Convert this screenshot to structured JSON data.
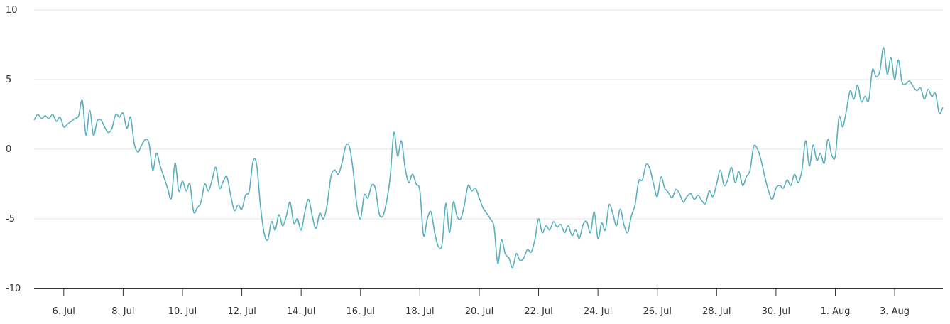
{
  "chart_data": {
    "type": "line",
    "title": "",
    "xlabel": "",
    "ylabel": "",
    "ylim": [
      -10,
      10
    ],
    "xlim": [
      "2024-07-05",
      "2024-08-04T15:00"
    ],
    "y_ticks": [
      {
        "value": 10,
        "label": "10"
      },
      {
        "value": 5,
        "label": "5"
      },
      {
        "value": 0,
        "label": "0"
      },
      {
        "value": -5,
        "label": "-5"
      },
      {
        "value": -10,
        "label": "-10"
      }
    ],
    "x_ticks": [
      {
        "date": "2024-07-06",
        "label": "6. Jul"
      },
      {
        "date": "2024-07-08",
        "label": "8. Jul"
      },
      {
        "date": "2024-07-10",
        "label": "10. Jul"
      },
      {
        "date": "2024-07-12",
        "label": "12. Jul"
      },
      {
        "date": "2024-07-14",
        "label": "14. Jul"
      },
      {
        "date": "2024-07-16",
        "label": "16. Jul"
      },
      {
        "date": "2024-07-18",
        "label": "18. Jul"
      },
      {
        "date": "2024-07-20",
        "label": "20. Jul"
      },
      {
        "date": "2024-07-22",
        "label": "22. Jul"
      },
      {
        "date": "2024-07-24",
        "label": "24. Jul"
      },
      {
        "date": "2024-07-26",
        "label": "26. Jul"
      },
      {
        "date": "2024-07-28",
        "label": "28. Jul"
      },
      {
        "date": "2024-07-30",
        "label": "30. Jul"
      },
      {
        "date": "2024-08-01",
        "label": "1. Aug"
      },
      {
        "date": "2024-08-03",
        "label": "3. Aug"
      }
    ],
    "grid": true,
    "legend": "none",
    "line_color": "#5ab0be",
    "series": [
      {
        "points": [
          [
            "2024-07-05T00:00",
            2.1
          ],
          [
            "2024-07-05T03:00",
            2.5
          ],
          [
            "2024-07-05T06:00",
            2.2
          ],
          [
            "2024-07-05T09:00",
            2.4
          ],
          [
            "2024-07-05T12:00",
            2.2
          ],
          [
            "2024-07-05T15:00",
            2.5
          ],
          [
            "2024-07-05T18:00",
            2.0
          ],
          [
            "2024-07-05T21:00",
            2.3
          ],
          [
            "2024-07-06T00:00",
            1.6
          ],
          [
            "2024-07-06T03:00",
            1.8
          ],
          [
            "2024-07-06T06:00",
            2.0
          ],
          [
            "2024-07-06T09:00",
            2.2
          ],
          [
            "2024-07-06T12:00",
            2.4
          ],
          [
            "2024-07-06T15:00",
            3.5
          ],
          [
            "2024-07-06T18:00",
            1.0
          ],
          [
            "2024-07-06T21:00",
            2.8
          ],
          [
            "2024-07-07T00:00",
            1.0
          ],
          [
            "2024-07-07T03:00",
            2.0
          ],
          [
            "2024-07-07T06:00",
            2.1
          ],
          [
            "2024-07-07T09:00",
            1.6
          ],
          [
            "2024-07-07T12:00",
            1.2
          ],
          [
            "2024-07-07T15:00",
            1.5
          ],
          [
            "2024-07-07T18:00",
            2.5
          ],
          [
            "2024-07-07T21:00",
            2.3
          ],
          [
            "2024-07-08T00:00",
            2.6
          ],
          [
            "2024-07-08T03:00",
            1.5
          ],
          [
            "2024-07-08T06:00",
            2.3
          ],
          [
            "2024-07-08T09:00",
            0.4
          ],
          [
            "2024-07-08T12:00",
            -0.2
          ],
          [
            "2024-07-08T15:00",
            0.3
          ],
          [
            "2024-07-08T18:00",
            0.7
          ],
          [
            "2024-07-08T21:00",
            0.4
          ],
          [
            "2024-07-09T00:00",
            -1.5
          ],
          [
            "2024-07-09T03:00",
            -0.3
          ],
          [
            "2024-07-09T06:00",
            -1.2
          ],
          [
            "2024-07-09T09:00",
            -2.0
          ],
          [
            "2024-07-09T12:00",
            -2.8
          ],
          [
            "2024-07-09T15:00",
            -3.5
          ],
          [
            "2024-07-09T18:00",
            -1.0
          ],
          [
            "2024-07-09T21:00",
            -3.0
          ],
          [
            "2024-07-10T00:00",
            -2.3
          ],
          [
            "2024-07-10T03:00",
            -3.0
          ],
          [
            "2024-07-10T06:00",
            -2.5
          ],
          [
            "2024-07-10T09:00",
            -4.5
          ],
          [
            "2024-07-10T12:00",
            -4.2
          ],
          [
            "2024-07-10T15:00",
            -3.8
          ],
          [
            "2024-07-10T18:00",
            -2.5
          ],
          [
            "2024-07-10T21:00",
            -3.0
          ],
          [
            "2024-07-11T00:00",
            -2.2
          ],
          [
            "2024-07-11T03:00",
            -1.3
          ],
          [
            "2024-07-11T06:00",
            -2.8
          ],
          [
            "2024-07-11T09:00",
            -2.3
          ],
          [
            "2024-07-11T12:00",
            -2.0
          ],
          [
            "2024-07-11T15:00",
            -3.3
          ],
          [
            "2024-07-11T18:00",
            -4.4
          ],
          [
            "2024-07-11T21:00",
            -4.0
          ],
          [
            "2024-07-12T00:00",
            -4.3
          ],
          [
            "2024-07-12T03:00",
            -3.3
          ],
          [
            "2024-07-12T06:00",
            -3.0
          ],
          [
            "2024-07-12T09:00",
            -0.9
          ],
          [
            "2024-07-12T12:00",
            -1.1
          ],
          [
            "2024-07-12T15:00",
            -4.0
          ],
          [
            "2024-07-12T18:00",
            -6.0
          ],
          [
            "2024-07-12T21:00",
            -6.5
          ],
          [
            "2024-07-13T00:00",
            -5.2
          ],
          [
            "2024-07-13T03:00",
            -5.8
          ],
          [
            "2024-07-13T06:00",
            -4.7
          ],
          [
            "2024-07-13T09:00",
            -5.5
          ],
          [
            "2024-07-13T12:00",
            -4.8
          ],
          [
            "2024-07-13T15:00",
            -3.8
          ],
          [
            "2024-07-13T18:00",
            -5.3
          ],
          [
            "2024-07-13T21:00",
            -5.0
          ],
          [
            "2024-07-14T00:00",
            -5.8
          ],
          [
            "2024-07-14T03:00",
            -4.5
          ],
          [
            "2024-07-14T06:00",
            -3.6
          ],
          [
            "2024-07-14T09:00",
            -4.8
          ],
          [
            "2024-07-14T12:00",
            -5.7
          ],
          [
            "2024-07-14T15:00",
            -4.6
          ],
          [
            "2024-07-14T18:00",
            -5.0
          ],
          [
            "2024-07-14T21:00",
            -4.0
          ],
          [
            "2024-07-15T00:00",
            -2.0
          ],
          [
            "2024-07-15T03:00",
            -1.5
          ],
          [
            "2024-07-15T06:00",
            -1.8
          ],
          [
            "2024-07-15T09:00",
            -1.0
          ],
          [
            "2024-07-15T12:00",
            0.2
          ],
          [
            "2024-07-15T15:00",
            0.2
          ],
          [
            "2024-07-15T18:00",
            -1.5
          ],
          [
            "2024-07-15T21:00",
            -4.0
          ],
          [
            "2024-07-16T00:00",
            -5.0
          ],
          [
            "2024-07-16T03:00",
            -3.3
          ],
          [
            "2024-07-16T06:00",
            -3.5
          ],
          [
            "2024-07-16T09:00",
            -2.6
          ],
          [
            "2024-07-16T12:00",
            -2.8
          ],
          [
            "2024-07-16T15:00",
            -4.6
          ],
          [
            "2024-07-16T18:00",
            -4.8
          ],
          [
            "2024-07-16T21:00",
            -3.8
          ],
          [
            "2024-07-17T00:00",
            -2.0
          ],
          [
            "2024-07-17T03:00",
            1.2
          ],
          [
            "2024-07-17T06:00",
            -0.5
          ],
          [
            "2024-07-17T09:00",
            0.6
          ],
          [
            "2024-07-17T12:00",
            -1.3
          ],
          [
            "2024-07-17T15:00",
            -2.4
          ],
          [
            "2024-07-17T18:00",
            -1.8
          ],
          [
            "2024-07-17T21:00",
            -2.5
          ],
          [
            "2024-07-18T00:00",
            -3.0
          ],
          [
            "2024-07-18T03:00",
            -6.2
          ],
          [
            "2024-07-18T06:00",
            -5.0
          ],
          [
            "2024-07-18T09:00",
            -4.5
          ],
          [
            "2024-07-18T12:00",
            -6.0
          ],
          [
            "2024-07-18T15:00",
            -7.0
          ],
          [
            "2024-07-18T18:00",
            -6.8
          ],
          [
            "2024-07-18T21:00",
            -3.9
          ],
          [
            "2024-07-19T00:00",
            -6.0
          ],
          [
            "2024-07-19T03:00",
            -3.8
          ],
          [
            "2024-07-19T06:00",
            -4.8
          ],
          [
            "2024-07-19T09:00",
            -5.0
          ],
          [
            "2024-07-19T12:00",
            -4.0
          ],
          [
            "2024-07-19T15:00",
            -2.6
          ],
          [
            "2024-07-19T18:00",
            -3.0
          ],
          [
            "2024-07-19T21:00",
            -2.8
          ],
          [
            "2024-07-20T00:00",
            -3.5
          ],
          [
            "2024-07-20T03:00",
            -4.2
          ],
          [
            "2024-07-20T06:00",
            -4.6
          ],
          [
            "2024-07-20T09:00",
            -5.0
          ],
          [
            "2024-07-20T12:00",
            -5.6
          ],
          [
            "2024-07-20T15:00",
            -8.2
          ],
          [
            "2024-07-20T18:00",
            -6.5
          ],
          [
            "2024-07-20T21:00",
            -7.5
          ],
          [
            "2024-07-21T00:00",
            -7.8
          ],
          [
            "2024-07-21T03:00",
            -8.5
          ],
          [
            "2024-07-21T06:00",
            -7.5
          ],
          [
            "2024-07-21T09:00",
            -8.0
          ],
          [
            "2024-07-21T12:00",
            -7.8
          ],
          [
            "2024-07-21T15:00",
            -7.2
          ],
          [
            "2024-07-21T18:00",
            -7.4
          ],
          [
            "2024-07-21T21:00",
            -6.5
          ],
          [
            "2024-07-22T00:00",
            -5.0
          ],
          [
            "2024-07-22T03:00",
            -6.0
          ],
          [
            "2024-07-22T06:00",
            -5.5
          ],
          [
            "2024-07-22T09:00",
            -5.8
          ],
          [
            "2024-07-22T12:00",
            -5.2
          ],
          [
            "2024-07-22T15:00",
            -5.6
          ],
          [
            "2024-07-22T18:00",
            -5.4
          ],
          [
            "2024-07-22T21:00",
            -6.0
          ],
          [
            "2024-07-23T00:00",
            -5.5
          ],
          [
            "2024-07-23T03:00",
            -6.2
          ],
          [
            "2024-07-23T06:00",
            -5.8
          ],
          [
            "2024-07-23T09:00",
            -6.4
          ],
          [
            "2024-07-23T12:00",
            -5.4
          ],
          [
            "2024-07-23T15:00",
            -5.2
          ],
          [
            "2024-07-23T18:00",
            -6.0
          ],
          [
            "2024-07-23T21:00",
            -4.5
          ],
          [
            "2024-07-24T00:00",
            -6.4
          ],
          [
            "2024-07-24T03:00",
            -5.3
          ],
          [
            "2024-07-24T06:00",
            -5.8
          ],
          [
            "2024-07-24T09:00",
            -4.0
          ],
          [
            "2024-07-24T12:00",
            -4.6
          ],
          [
            "2024-07-24T15:00",
            -5.5
          ],
          [
            "2024-07-24T18:00",
            -4.3
          ],
          [
            "2024-07-24T21:00",
            -5.4
          ],
          [
            "2024-07-25T00:00",
            -6.0
          ],
          [
            "2024-07-25T03:00",
            -4.8
          ],
          [
            "2024-07-25T06:00",
            -4.0
          ],
          [
            "2024-07-25T09:00",
            -2.3
          ],
          [
            "2024-07-25T12:00",
            -2.2
          ],
          [
            "2024-07-25T15:00",
            -1.1
          ],
          [
            "2024-07-25T18:00",
            -1.4
          ],
          [
            "2024-07-25T21:00",
            -2.5
          ],
          [
            "2024-07-26T00:00",
            -3.4
          ],
          [
            "2024-07-26T03:00",
            -2.0
          ],
          [
            "2024-07-26T06:00",
            -2.8
          ],
          [
            "2024-07-26T09:00",
            -3.1
          ],
          [
            "2024-07-26T12:00",
            -3.5
          ],
          [
            "2024-07-26T15:00",
            -2.9
          ],
          [
            "2024-07-26T18:00",
            -3.2
          ],
          [
            "2024-07-26T21:00",
            -3.8
          ],
          [
            "2024-07-27T00:00",
            -3.4
          ],
          [
            "2024-07-27T03:00",
            -3.2
          ],
          [
            "2024-07-27T06:00",
            -3.6
          ],
          [
            "2024-07-27T09:00",
            -3.3
          ],
          [
            "2024-07-27T12:00",
            -3.7
          ],
          [
            "2024-07-27T15:00",
            -3.9
          ],
          [
            "2024-07-27T18:00",
            -3.0
          ],
          [
            "2024-07-27T21:00",
            -3.4
          ],
          [
            "2024-07-28T00:00",
            -2.5
          ],
          [
            "2024-07-28T03:00",
            -1.5
          ],
          [
            "2024-07-28T06:00",
            -2.6
          ],
          [
            "2024-07-28T09:00",
            -2.2
          ],
          [
            "2024-07-28T12:00",
            -1.3
          ],
          [
            "2024-07-28T15:00",
            -2.4
          ],
          [
            "2024-07-28T18:00",
            -1.6
          ],
          [
            "2024-07-28T21:00",
            -2.6
          ],
          [
            "2024-07-29T00:00",
            -2.0
          ],
          [
            "2024-07-29T03:00",
            -1.5
          ],
          [
            "2024-07-29T06:00",
            0.2
          ],
          [
            "2024-07-29T09:00",
            0.0
          ],
          [
            "2024-07-29T12:00",
            -0.8
          ],
          [
            "2024-07-29T15:00",
            -2.0
          ],
          [
            "2024-07-29T18:00",
            -3.0
          ],
          [
            "2024-07-29T21:00",
            -3.6
          ],
          [
            "2024-07-30T00:00",
            -2.8
          ],
          [
            "2024-07-30T03:00",
            -2.6
          ],
          [
            "2024-07-30T06:00",
            -2.8
          ],
          [
            "2024-07-30T09:00",
            -2.2
          ],
          [
            "2024-07-30T12:00",
            -2.6
          ],
          [
            "2024-07-30T15:00",
            -1.8
          ],
          [
            "2024-07-30T18:00",
            -2.4
          ],
          [
            "2024-07-30T21:00",
            -1.5
          ],
          [
            "2024-07-31T00:00",
            0.6
          ],
          [
            "2024-07-31T03:00",
            -1.2
          ],
          [
            "2024-07-31T06:00",
            0.3
          ],
          [
            "2024-07-31T09:00",
            -0.8
          ],
          [
            "2024-07-31T12:00",
            -0.3
          ],
          [
            "2024-07-31T15:00",
            -1.0
          ],
          [
            "2024-07-31T18:00",
            0.7
          ],
          [
            "2024-07-31T21:00",
            -0.4
          ],
          [
            "2024-08-01T00:00",
            -0.5
          ],
          [
            "2024-08-01T03:00",
            2.3
          ],
          [
            "2024-08-01T06:00",
            1.6
          ],
          [
            "2024-08-01T09:00",
            2.8
          ],
          [
            "2024-08-01T12:00",
            4.2
          ],
          [
            "2024-08-01T15:00",
            3.6
          ],
          [
            "2024-08-01T18:00",
            4.6
          ],
          [
            "2024-08-01T21:00",
            3.4
          ],
          [
            "2024-08-02T00:00",
            3.8
          ],
          [
            "2024-08-02T03:00",
            3.5
          ],
          [
            "2024-08-02T06:00",
            5.7
          ],
          [
            "2024-08-02T09:00",
            5.2
          ],
          [
            "2024-08-02T12:00",
            5.6
          ],
          [
            "2024-08-02T15:00",
            7.3
          ],
          [
            "2024-08-02T18:00",
            5.4
          ],
          [
            "2024-08-02T21:00",
            6.6
          ],
          [
            "2024-08-03T00:00",
            5.0
          ],
          [
            "2024-08-03T03:00",
            6.4
          ],
          [
            "2024-08-03T06:00",
            4.8
          ],
          [
            "2024-08-03T09:00",
            4.7
          ],
          [
            "2024-08-03T12:00",
            4.9
          ],
          [
            "2024-08-03T15:00",
            4.5
          ],
          [
            "2024-08-03T18:00",
            4.2
          ],
          [
            "2024-08-03T21:00",
            4.4
          ],
          [
            "2024-08-04T00:00",
            3.6
          ],
          [
            "2024-08-04T03:00",
            4.3
          ],
          [
            "2024-08-04T06:00",
            3.8
          ],
          [
            "2024-08-04T09:00",
            4.0
          ],
          [
            "2024-08-04T12:00",
            2.6
          ],
          [
            "2024-08-04T15:00",
            3.0
          ]
        ]
      }
    ]
  }
}
